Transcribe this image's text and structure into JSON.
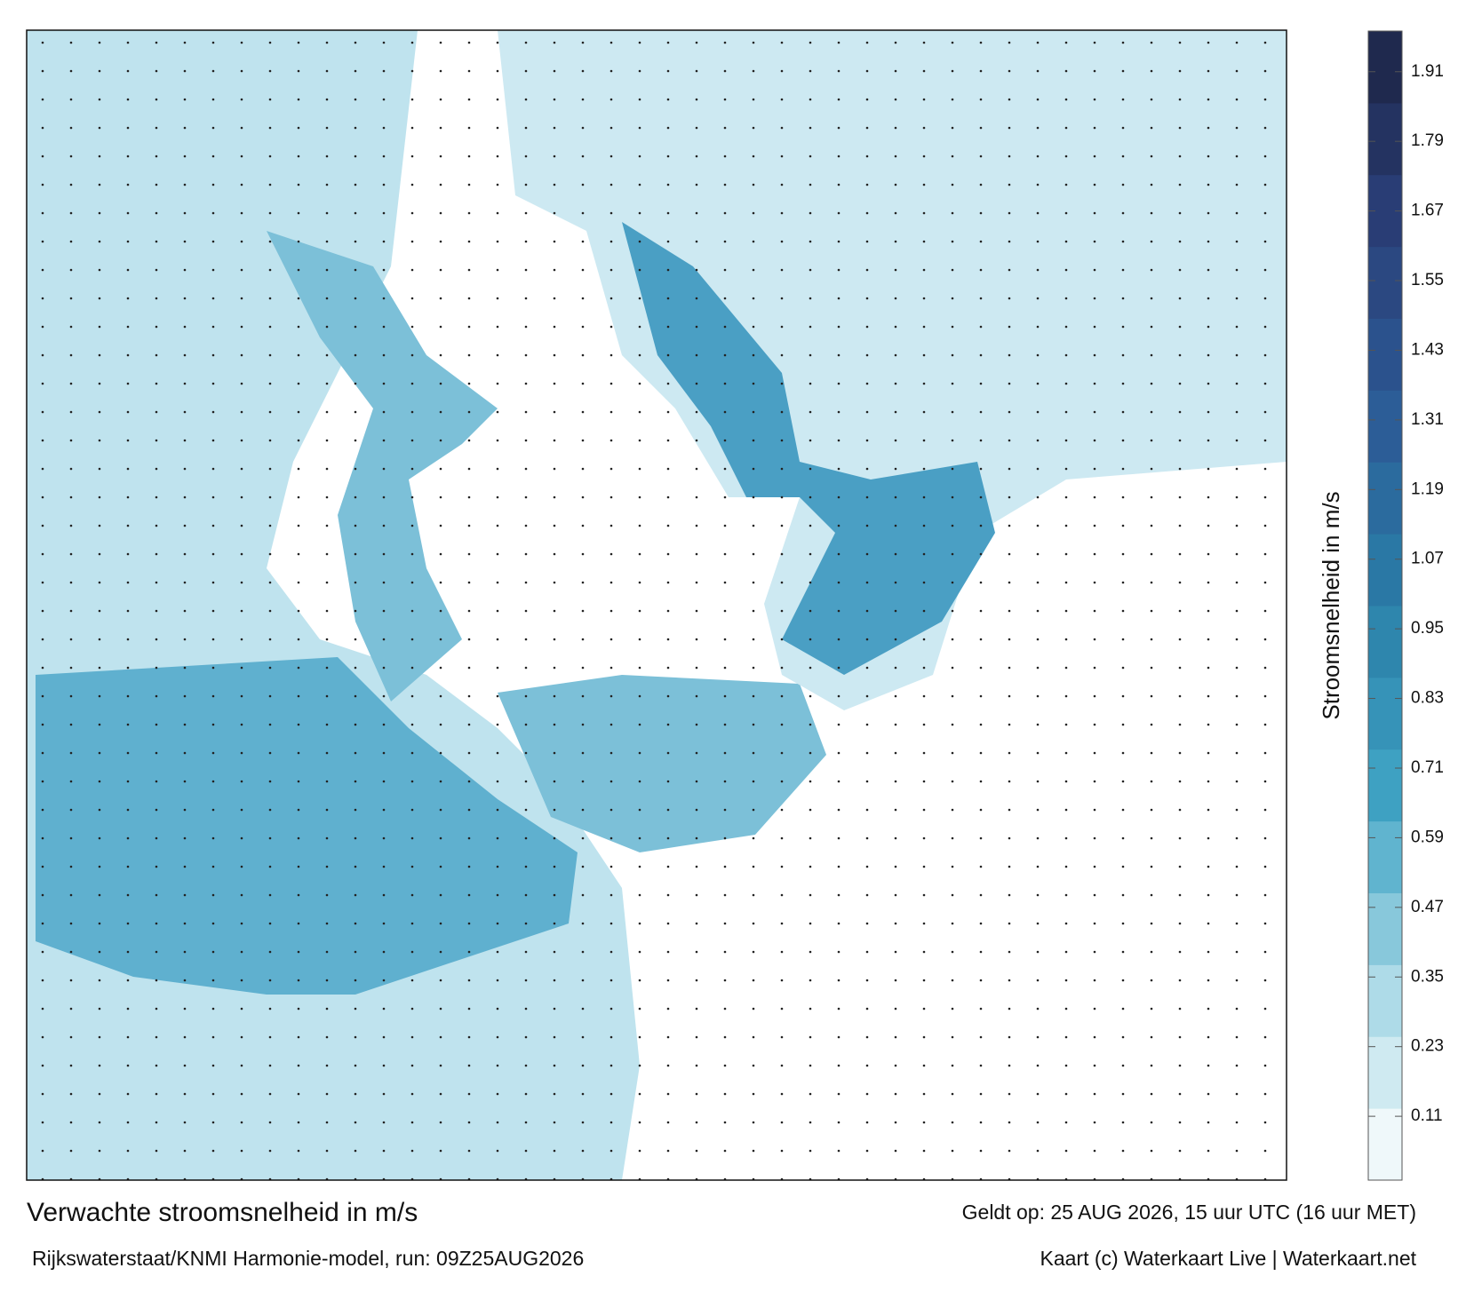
{
  "chart_data": {
    "type": "colormap-map",
    "title": "Verwachte stroomsnelheid in m/s",
    "subtitle": "Rijkswaterstaat/KNMI Harmonie-model, run: 09Z25AUG2026",
    "valid_time": "Geldt op: 25 AUG 2026, 15 uur UTC (16 uur MET)",
    "credit": "Kaart (c) Waterkaart Live | Waterkaart.net",
    "colorbar_label": "Stroomsnelheid in m/s",
    "clim": [
      0,
      1.98
    ],
    "cticks": [
      0.11,
      0.23,
      0.35,
      0.47,
      0.59,
      0.71,
      0.83,
      0.95,
      1.07,
      1.19,
      1.31,
      1.43,
      1.55,
      1.67,
      1.79,
      1.91
    ],
    "colormap": [
      "#ffffff",
      "#a9d9e6",
      "#3fa3c4",
      "#2a7fa8",
      "#2c5b96",
      "#2a3f78",
      "#1c2444"
    ]
  }
}
